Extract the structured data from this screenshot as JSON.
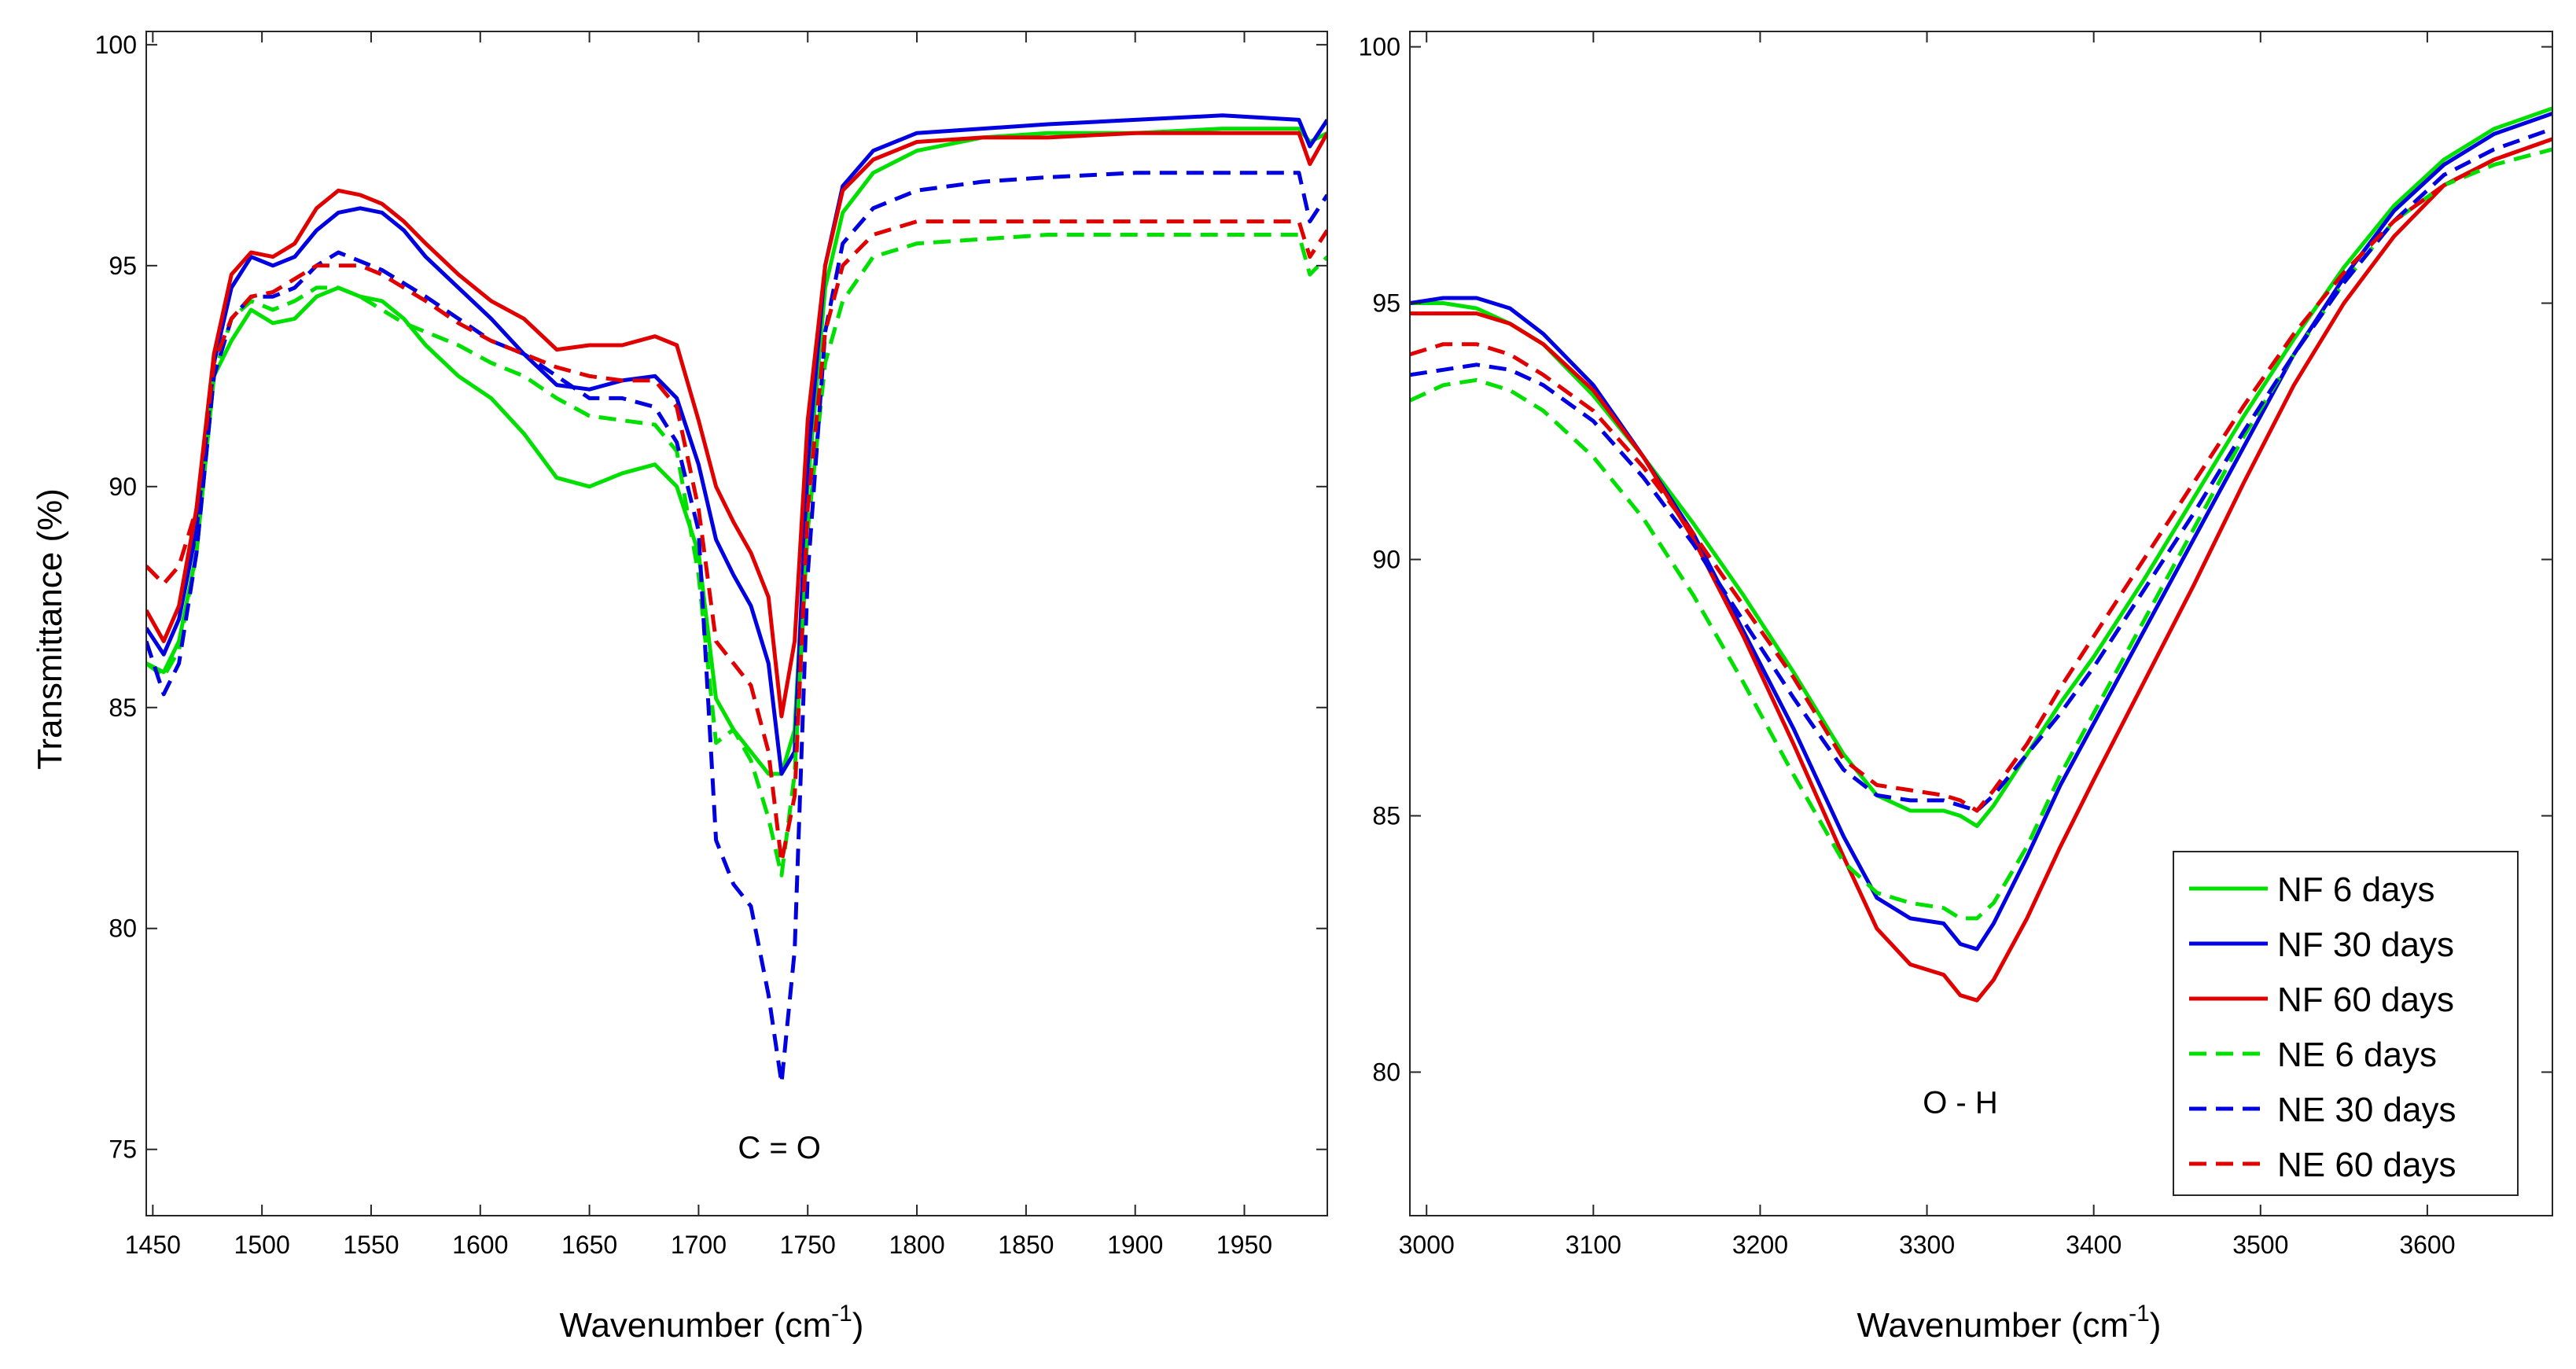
{
  "chart_data": [
    {
      "type": "line",
      "xlabel": "Wavenumber (cm",
      "xlabel_sup": "-1",
      "xlabel_close": ")",
      "ylabel": "Transmittance (%)",
      "xlim": [
        1447,
        1988
      ],
      "ylim": [
        73.5,
        100.3
      ],
      "xticks": [
        1450,
        1500,
        1550,
        1600,
        1650,
        1700,
        1750,
        1800,
        1850,
        1900,
        1950
      ],
      "yticks": [
        75,
        80,
        85,
        90,
        95,
        100
      ],
      "annotation": {
        "text": "C = O",
        "x": 1737,
        "y": 74.8
      },
      "grid": false,
      "series": [
        {
          "name": "NF 6 days",
          "color": "#00e000",
          "dash": "solid",
          "x": [
            1447,
            1455,
            1462,
            1470,
            1478,
            1486,
            1495,
            1505,
            1515,
            1525,
            1535,
            1545,
            1555,
            1565,
            1575,
            1590,
            1605,
            1620,
            1635,
            1650,
            1665,
            1680,
            1690,
            1700,
            1708,
            1716,
            1724,
            1732,
            1738,
            1744,
            1750,
            1758,
            1766,
            1780,
            1800,
            1830,
            1860,
            1900,
            1940,
            1975,
            1980,
            1988
          ],
          "y": [
            86,
            85.8,
            86.5,
            88.5,
            92.5,
            93.3,
            94,
            93.7,
            93.8,
            94.3,
            94.5,
            94.3,
            94.2,
            93.8,
            93.2,
            92.5,
            92,
            91.2,
            90.2,
            90,
            90.3,
            90.5,
            90,
            88.5,
            85.2,
            84.5,
            84,
            83.5,
            83.5,
            84.5,
            90,
            94.5,
            96.2,
            97.1,
            97.6,
            97.9,
            98,
            98,
            98.1,
            98.1,
            97.8,
            98
          ]
        },
        {
          "name": "NF 30 days",
          "color": "#0000e0",
          "dash": "solid",
          "x": [
            1447,
            1455,
            1462,
            1470,
            1478,
            1486,
            1495,
            1505,
            1515,
            1525,
            1535,
            1545,
            1555,
            1565,
            1575,
            1590,
            1605,
            1620,
            1635,
            1650,
            1665,
            1680,
            1690,
            1700,
            1708,
            1716,
            1724,
            1732,
            1738,
            1744,
            1750,
            1758,
            1766,
            1780,
            1800,
            1830,
            1860,
            1900,
            1940,
            1975,
            1980,
            1988
          ],
          "y": [
            86.8,
            86.2,
            87,
            89,
            92.8,
            94.5,
            95.2,
            95,
            95.2,
            95.8,
            96.2,
            96.3,
            96.2,
            95.8,
            95.2,
            94.5,
            93.8,
            93,
            92.3,
            92.2,
            92.4,
            92.5,
            92,
            90.5,
            88.8,
            88,
            87.3,
            86,
            83.5,
            84,
            90.5,
            95,
            96.8,
            97.6,
            98,
            98.1,
            98.2,
            98.3,
            98.4,
            98.3,
            97.7,
            98.3
          ]
        },
        {
          "name": "NF 60 days",
          "color": "#e00000",
          "dash": "solid",
          "x": [
            1447,
            1455,
            1462,
            1470,
            1478,
            1486,
            1495,
            1505,
            1515,
            1525,
            1535,
            1545,
            1555,
            1565,
            1575,
            1590,
            1605,
            1620,
            1635,
            1650,
            1665,
            1680,
            1690,
            1700,
            1708,
            1716,
            1724,
            1732,
            1738,
            1744,
            1750,
            1758,
            1766,
            1780,
            1800,
            1830,
            1860,
            1900,
            1940,
            1975,
            1980,
            1988
          ],
          "y": [
            87.2,
            86.5,
            87.3,
            89.5,
            93,
            94.8,
            95.3,
            95.2,
            95.5,
            96.3,
            96.7,
            96.6,
            96.4,
            96,
            95.5,
            94.8,
            94.2,
            93.8,
            93.1,
            93.2,
            93.2,
            93.4,
            93.2,
            91.5,
            90,
            89.2,
            88.5,
            87.5,
            84.8,
            86.5,
            91.5,
            95,
            96.7,
            97.4,
            97.8,
            97.9,
            97.9,
            98,
            98,
            98,
            97.3,
            98
          ]
        },
        {
          "name": "NE 6 days",
          "color": "#00e000",
          "dash": "dashed",
          "x": [
            1447,
            1455,
            1462,
            1470,
            1478,
            1486,
            1495,
            1505,
            1515,
            1525,
            1535,
            1545,
            1555,
            1565,
            1575,
            1590,
            1605,
            1620,
            1635,
            1650,
            1665,
            1680,
            1690,
            1700,
            1708,
            1716,
            1724,
            1732,
            1738,
            1744,
            1750,
            1758,
            1766,
            1780,
            1800,
            1830,
            1860,
            1900,
            1940,
            1975,
            1980,
            1988
          ],
          "y": [
            86,
            85.7,
            86.3,
            88.5,
            92.5,
            93.8,
            94.2,
            94,
            94.2,
            94.5,
            94.5,
            94.3,
            94,
            93.7,
            93.5,
            93.2,
            92.8,
            92.5,
            92,
            91.6,
            91.5,
            91.4,
            90.8,
            88,
            84.2,
            84.5,
            83.8,
            82.5,
            81.2,
            83.5,
            89,
            92.8,
            94.2,
            95.2,
            95.5,
            95.6,
            95.7,
            95.7,
            95.7,
            95.7,
            94.8,
            95.2
          ]
        },
        {
          "name": "NE 30 days",
          "color": "#0000e0",
          "dash": "dashed",
          "x": [
            1447,
            1455,
            1462,
            1470,
            1478,
            1486,
            1495,
            1505,
            1515,
            1525,
            1535,
            1545,
            1555,
            1565,
            1575,
            1590,
            1605,
            1620,
            1635,
            1650,
            1665,
            1680,
            1690,
            1700,
            1708,
            1716,
            1724,
            1732,
            1738,
            1744,
            1750,
            1758,
            1766,
            1780,
            1800,
            1830,
            1860,
            1900,
            1940,
            1975,
            1980,
            1988
          ],
          "y": [
            86.5,
            85.3,
            86,
            88.5,
            92.5,
            93.8,
            94.3,
            94.3,
            94.5,
            95,
            95.3,
            95.1,
            94.9,
            94.6,
            94.3,
            93.8,
            93.3,
            93,
            92.5,
            92,
            92,
            91.8,
            91,
            89,
            82,
            81,
            80.5,
            78.5,
            76.5,
            79.5,
            88,
            93.5,
            95.5,
            96.3,
            96.7,
            96.9,
            97,
            97.1,
            97.1,
            97.1,
            96,
            96.6
          ]
        },
        {
          "name": "NE 60 days",
          "color": "#e00000",
          "dash": "dashed",
          "x": [
            1447,
            1455,
            1462,
            1470,
            1478,
            1486,
            1495,
            1505,
            1515,
            1525,
            1535,
            1545,
            1555,
            1565,
            1575,
            1590,
            1605,
            1620,
            1635,
            1650,
            1665,
            1680,
            1690,
            1700,
            1708,
            1716,
            1724,
            1732,
            1738,
            1744,
            1750,
            1758,
            1766,
            1780,
            1800,
            1830,
            1860,
            1900,
            1940,
            1975,
            1980,
            1988
          ],
          "y": [
            88.2,
            87.8,
            88.2,
            89.5,
            92.8,
            93.8,
            94.3,
            94.4,
            94.7,
            95,
            95,
            95,
            94.8,
            94.5,
            94.2,
            93.7,
            93.3,
            93,
            92.7,
            92.5,
            92.4,
            92.4,
            91.8,
            89.5,
            86.5,
            86,
            85.5,
            84,
            81.5,
            83,
            89.5,
            93.5,
            95,
            95.7,
            96,
            96,
            96,
            96,
            96,
            96,
            95.2,
            95.8
          ]
        }
      ]
    },
    {
      "type": "line",
      "xlabel": "Wavenumber (cm",
      "xlabel_sup": "-1",
      "xlabel_close": ")",
      "ylabel": "",
      "xlim": [
        2990,
        3675
      ],
      "ylim": [
        77.2,
        100.3
      ],
      "xticks": [
        3000,
        3100,
        3200,
        3300,
        3400,
        3500,
        3600
      ],
      "yticks": [
        80,
        85,
        90,
        95,
        100
      ],
      "annotation": {
        "text": "O - H",
        "x": 3320,
        "y": 79.2
      },
      "grid": false,
      "legend": {
        "position": "bottom-right"
      },
      "series": [
        {
          "name": "NF 6 days",
          "color": "#00e000",
          "dash": "solid",
          "x": [
            2990,
            3010,
            3030,
            3050,
            3070,
            3100,
            3130,
            3160,
            3190,
            3220,
            3250,
            3270,
            3290,
            3310,
            3320,
            3330,
            3340,
            3360,
            3380,
            3400,
            3430,
            3460,
            3490,
            3520,
            3550,
            3580,
            3610,
            3640,
            3675
          ],
          "y": [
            95,
            95,
            94.9,
            94.6,
            94.2,
            93.2,
            92,
            90.7,
            89.3,
            87.8,
            86.2,
            85.4,
            85.1,
            85.1,
            85,
            84.8,
            85.2,
            86.2,
            87.2,
            88.1,
            89.6,
            91.2,
            92.8,
            94.3,
            95.7,
            96.9,
            97.8,
            98.4,
            98.8
          ]
        },
        {
          "name": "NF 30 days",
          "color": "#0000e0",
          "dash": "solid",
          "x": [
            2990,
            3010,
            3030,
            3050,
            3070,
            3100,
            3130,
            3160,
            3190,
            3220,
            3250,
            3270,
            3290,
            3310,
            3320,
            3330,
            3340,
            3360,
            3380,
            3400,
            3430,
            3460,
            3490,
            3520,
            3550,
            3580,
            3610,
            3640,
            3675
          ],
          "y": [
            95,
            95.1,
            95.1,
            94.9,
            94.4,
            93.4,
            92,
            90.5,
            88.6,
            86.7,
            84.6,
            83.4,
            83,
            82.9,
            82.5,
            82.4,
            82.9,
            84.2,
            85.6,
            86.8,
            88.6,
            90.4,
            92.2,
            94,
            95.5,
            96.8,
            97.7,
            98.3,
            98.7
          ]
        },
        {
          "name": "NF 60 days",
          "color": "#e00000",
          "dash": "solid",
          "x": [
            2990,
            3010,
            3030,
            3050,
            3070,
            3100,
            3130,
            3160,
            3190,
            3220,
            3250,
            3270,
            3290,
            3310,
            3320,
            3330,
            3340,
            3360,
            3380,
            3400,
            3430,
            3460,
            3490,
            3520,
            3550,
            3580,
            3610,
            3640,
            3675
          ],
          "y": [
            94.8,
            94.8,
            94.8,
            94.6,
            94.2,
            93.3,
            92,
            90.4,
            88.5,
            86.4,
            84.2,
            82.8,
            82.1,
            81.9,
            81.5,
            81.4,
            81.8,
            83,
            84.4,
            85.7,
            87.6,
            89.5,
            91.5,
            93.4,
            95,
            96.3,
            97.3,
            97.8,
            98.2
          ]
        },
        {
          "name": "NE 6 days",
          "color": "#00e000",
          "dash": "dashed",
          "x": [
            2990,
            3010,
            3030,
            3050,
            3070,
            3100,
            3130,
            3160,
            3190,
            3220,
            3250,
            3270,
            3290,
            3310,
            3320,
            3330,
            3340,
            3360,
            3380,
            3400,
            3430,
            3460,
            3490,
            3520,
            3550,
            3580,
            3610,
            3640,
            3675
          ],
          "y": [
            93.1,
            93.4,
            93.5,
            93.3,
            92.9,
            92,
            90.8,
            89.3,
            87.6,
            85.8,
            84.1,
            83.5,
            83.3,
            83.2,
            83,
            83,
            83.3,
            84.4,
            85.8,
            87,
            88.8,
            90.6,
            92.4,
            94,
            95.4,
            96.6,
            97.3,
            97.7,
            98
          ]
        },
        {
          "name": "NE 30 days",
          "color": "#0000e0",
          "dash": "dashed",
          "x": [
            2990,
            3010,
            3030,
            3050,
            3070,
            3100,
            3130,
            3160,
            3190,
            3220,
            3250,
            3270,
            3290,
            3310,
            3320,
            3330,
            3340,
            3360,
            3380,
            3400,
            3430,
            3460,
            3490,
            3520,
            3550,
            3580,
            3610,
            3640,
            3675
          ],
          "y": [
            93.6,
            93.7,
            93.8,
            93.7,
            93.4,
            92.7,
            91.6,
            90.3,
            88.8,
            87.3,
            85.9,
            85.4,
            85.3,
            85.3,
            85.2,
            85.1,
            85.4,
            86.2,
            87,
            87.9,
            89.4,
            90.9,
            92.5,
            94,
            95.4,
            96.6,
            97.5,
            98,
            98.4
          ]
        },
        {
          "name": "NE 60 days",
          "color": "#e00000",
          "dash": "dashed",
          "x": [
            2990,
            3010,
            3030,
            3050,
            3070,
            3100,
            3130,
            3160,
            3190,
            3220,
            3250,
            3270,
            3290,
            3310,
            3320,
            3330,
            3340,
            3360,
            3380,
            3400,
            3430,
            3460,
            3490,
            3520,
            3550,
            3580,
            3610,
            3640,
            3675
          ],
          "y": [
            94,
            94.2,
            94.2,
            94,
            93.6,
            92.9,
            91.8,
            90.5,
            89.1,
            87.7,
            86.1,
            85.6,
            85.5,
            85.4,
            85.3,
            85.1,
            85.5,
            86.4,
            87.5,
            88.5,
            90,
            91.5,
            93,
            94.4,
            95.6,
            96.6,
            97.3,
            97.8,
            98.2
          ]
        }
      ]
    }
  ]
}
